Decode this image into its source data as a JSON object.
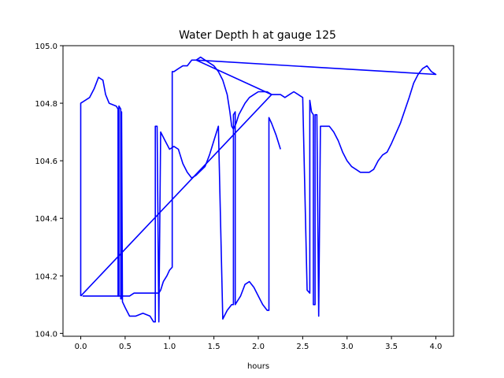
{
  "chart_data": {
    "type": "line",
    "title": "Water Depth h at gauge 125",
    "xlabel": "hours",
    "ylabel": "",
    "xlim": [
      -0.2,
      4.2
    ],
    "ylim": [
      103.99,
      105.0
    ],
    "xticks": [
      0.0,
      0.5,
      1.0,
      1.5,
      2.0,
      2.5,
      3.0,
      3.5,
      4.0
    ],
    "xtick_labels": [
      "0.0",
      "0.5",
      "1.0",
      "1.5",
      "2.0",
      "2.5",
      "3.0",
      "3.5",
      "4.0"
    ],
    "yticks": [
      104.0,
      104.2,
      104.4,
      104.6,
      104.8,
      105.0
    ],
    "ytick_labels": [
      "104.0",
      "104.2",
      "104.4",
      "104.6",
      "104.8",
      "105.0"
    ],
    "grid": false,
    "series": [
      {
        "color": "#0000ff",
        "x": [
          0.0,
          0.0,
          0.1,
          0.15,
          0.2,
          0.25,
          0.28,
          0.32,
          0.4,
          0.42,
          0.42,
          0.43,
          0.43,
          0.45,
          0.45,
          0.46,
          0.46,
          0.47,
          0.5,
          0.55,
          0.62,
          0.7,
          0.78,
          0.82,
          0.84,
          0.84,
          0.86,
          0.88,
          0.88,
          0.9,
          0.95,
          1.0,
          1.05,
          1.1,
          1.15,
          1.2,
          1.25,
          1.3,
          1.4,
          1.45,
          1.5,
          1.55,
          1.6,
          1.65,
          1.7,
          1.72,
          1.72,
          1.74,
          1.74,
          1.76,
          1.8,
          1.85,
          1.9,
          1.95,
          2.0,
          2.05,
          2.1,
          2.12,
          2.12,
          2.15,
          2.2,
          2.25
        ],
        "y": [
          104.13,
          104.8,
          104.82,
          104.85,
          104.89,
          104.88,
          104.83,
          104.8,
          104.79,
          104.78,
          104.13,
          104.13,
          104.79,
          104.78,
          104.12,
          104.12,
          104.77,
          104.11,
          104.09,
          104.06,
          104.06,
          104.07,
          104.06,
          104.04,
          104.04,
          104.72,
          104.72,
          104.04,
          104.04,
          104.7,
          104.67,
          104.64,
          104.65,
          104.64,
          104.59,
          104.56,
          104.54,
          104.55,
          104.58,
          104.62,
          104.67,
          104.72,
          104.05,
          104.08,
          104.1,
          104.1,
          104.76,
          104.77,
          104.1,
          104.11,
          104.13,
          104.17,
          104.18,
          104.16,
          104.13,
          104.1,
          104.08,
          104.08,
          104.75,
          104.73,
          104.69,
          104.64
        ]
      },
      {
        "color": "#0000ff",
        "x": [
          0.0,
          2.15,
          2.1,
          2.05,
          2.0,
          1.95,
          1.9,
          1.85,
          1.78,
          1.75,
          1.72,
          1.7,
          1.68,
          1.65,
          1.6,
          1.55,
          1.5,
          1.45,
          1.4,
          1.35,
          1.3,
          1.25,
          1.2,
          1.15,
          1.1,
          1.05,
          1.03,
          1.03,
          1.0,
          0.97,
          0.93,
          0.9,
          0.88,
          0.85,
          0.82,
          0.8,
          0.75,
          0.7,
          0.65,
          0.6,
          0.55,
          0.5,
          0.45,
          0.4,
          0.35,
          0.3,
          0.2,
          0.1,
          0.02
        ],
        "y": [
          104.13,
          104.83,
          104.84,
          104.84,
          104.84,
          104.83,
          104.82,
          104.8,
          104.76,
          104.73,
          104.71,
          104.72,
          104.77,
          104.83,
          104.88,
          104.91,
          104.93,
          104.94,
          104.95,
          104.96,
          104.95,
          104.95,
          104.93,
          104.93,
          104.92,
          104.91,
          104.91,
          104.23,
          104.22,
          104.2,
          104.18,
          104.15,
          104.14,
          104.14,
          104.14,
          104.14,
          104.14,
          104.14,
          104.14,
          104.14,
          104.13,
          104.13,
          104.13,
          104.13,
          104.13,
          104.13,
          104.13,
          104.13,
          104.13
        ]
      },
      {
        "color": "#0000ff",
        "x": [
          1.3,
          2.15,
          1.3,
          4.0,
          4.0,
          3.95,
          3.9,
          3.85,
          3.8,
          3.75,
          3.7,
          3.6,
          3.5,
          3.45,
          3.4,
          3.35,
          3.3,
          3.25,
          3.2,
          3.15,
          3.1,
          3.05,
          3.0,
          2.95,
          2.9,
          2.85,
          2.8,
          2.75,
          2.7,
          2.68,
          2.68,
          2.66,
          2.66,
          2.64,
          2.64,
          2.62,
          2.62,
          2.6,
          2.58,
          2.58,
          2.55,
          2.5,
          2.45,
          2.4,
          2.35,
          2.3,
          2.25,
          2.2,
          2.15
        ],
        "y": [
          104.95,
          104.83,
          104.95,
          104.9,
          104.9,
          104.91,
          104.93,
          104.92,
          104.9,
          104.87,
          104.82,
          104.73,
          104.66,
          104.63,
          104.62,
          104.6,
          104.57,
          104.56,
          104.56,
          104.56,
          104.57,
          104.58,
          104.6,
          104.63,
          104.67,
          104.7,
          104.72,
          104.72,
          104.72,
          104.06,
          104.06,
          104.75,
          104.76,
          104.76,
          104.1,
          104.1,
          104.76,
          104.77,
          104.81,
          104.14,
          104.15,
          104.82,
          104.83,
          104.84,
          104.83,
          104.82,
          104.83,
          104.83,
          104.83
        ]
      }
    ]
  }
}
